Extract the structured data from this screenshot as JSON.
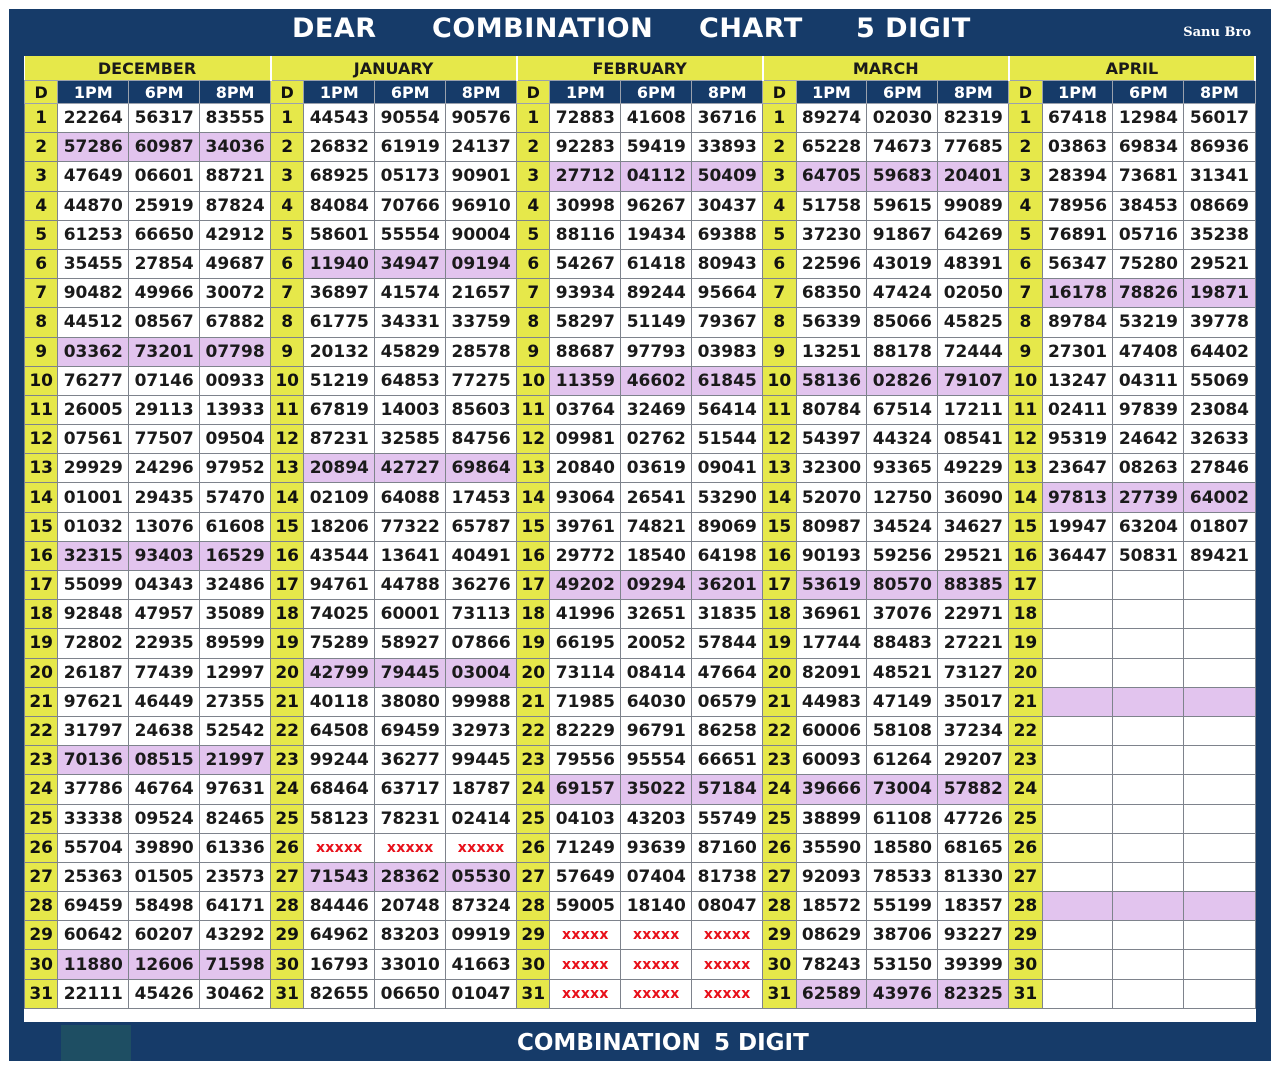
{
  "header": {
    "title_words": [
      "DEAR",
      "COMBINATION",
      "CHART",
      "5 DIGIT"
    ],
    "credit": "Sanu Bro"
  },
  "footer": {
    "words": [
      "COMBINATION",
      "5 DIGIT"
    ]
  },
  "colors": {
    "frame": "#163b69",
    "day_column": "#e6e84a",
    "highlight": "#e2c4ee",
    "missing_value": "#e8101a"
  },
  "column_headers": {
    "day": "D",
    "slots": [
      "1PM",
      "6PM",
      "8PM"
    ]
  },
  "months": [
    {
      "name": "DECEMBER",
      "rows": [
        [
          "22264",
          "56317",
          "83555"
        ],
        [
          "57286",
          "60987",
          "34036"
        ],
        [
          "47649",
          "06601",
          "88721"
        ],
        [
          "44870",
          "25919",
          "87824"
        ],
        [
          "61253",
          "66650",
          "42912"
        ],
        [
          "35455",
          "27854",
          "49687"
        ],
        [
          "90482",
          "49966",
          "30072"
        ],
        [
          "44512",
          "08567",
          "67882"
        ],
        [
          "03362",
          "73201",
          "07798"
        ],
        [
          "76277",
          "07146",
          "00933"
        ],
        [
          "26005",
          "29113",
          "13933"
        ],
        [
          "07561",
          "77507",
          "09504"
        ],
        [
          "29929",
          "24296",
          "97952"
        ],
        [
          "01001",
          "29435",
          "57470"
        ],
        [
          "01032",
          "13076",
          "61608"
        ],
        [
          "32315",
          "93403",
          "16529"
        ],
        [
          "55099",
          "04343",
          "32486"
        ],
        [
          "92848",
          "47957",
          "35089"
        ],
        [
          "72802",
          "22935",
          "89599"
        ],
        [
          "26187",
          "77439",
          "12997"
        ],
        [
          "97621",
          "46449",
          "27355"
        ],
        [
          "31797",
          "24638",
          "52542"
        ],
        [
          "70136",
          "08515",
          "21997"
        ],
        [
          "37786",
          "46764",
          "97631"
        ],
        [
          "33338",
          "09524",
          "82465"
        ],
        [
          "55704",
          "39890",
          "61336"
        ],
        [
          "25363",
          "01505",
          "23573"
        ],
        [
          "69459",
          "58498",
          "64171"
        ],
        [
          "60642",
          "60207",
          "43292"
        ],
        [
          "11880",
          "12606",
          "71598"
        ],
        [
          "22111",
          "45426",
          "30462"
        ]
      ],
      "highlight_days": [
        2,
        9,
        16,
        23,
        30
      ]
    },
    {
      "name": "JANUARY",
      "rows": [
        [
          "44543",
          "90554",
          "90576"
        ],
        [
          "26832",
          "61919",
          "24137"
        ],
        [
          "68925",
          "05173",
          "90901"
        ],
        [
          "84084",
          "70766",
          "96910"
        ],
        [
          "58601",
          "55554",
          "90004"
        ],
        [
          "11940",
          "34947",
          "09194"
        ],
        [
          "36897",
          "41574",
          "21657"
        ],
        [
          "61775",
          "34331",
          "33759"
        ],
        [
          "20132",
          "45829",
          "28578"
        ],
        [
          "51219",
          "64853",
          "77275"
        ],
        [
          "67819",
          "14003",
          "85603"
        ],
        [
          "87231",
          "32585",
          "84756"
        ],
        [
          "20894",
          "42727",
          "69864"
        ],
        [
          "02109",
          "64088",
          "17453"
        ],
        [
          "18206",
          "77322",
          "65787"
        ],
        [
          "43544",
          "13641",
          "40491"
        ],
        [
          "94761",
          "44788",
          "36276"
        ],
        [
          "74025",
          "60001",
          "73113"
        ],
        [
          "75289",
          "58927",
          "07866"
        ],
        [
          "42799",
          "79445",
          "03004"
        ],
        [
          "40118",
          "38080",
          "99988"
        ],
        [
          "64508",
          "69459",
          "32973"
        ],
        [
          "99244",
          "36277",
          "99445"
        ],
        [
          "68464",
          "63717",
          "18787"
        ],
        [
          "58123",
          "78231",
          "02414"
        ],
        [
          "xxxxx",
          "xxxxx",
          "xxxxx"
        ],
        [
          "71543",
          "28362",
          "05530"
        ],
        [
          "84446",
          "20748",
          "87324"
        ],
        [
          "64962",
          "83203",
          "09919"
        ],
        [
          "16793",
          "33010",
          "41663"
        ],
        [
          "82655",
          "06650",
          "01047"
        ]
      ],
      "highlight_days": [
        6,
        13,
        20,
        27
      ]
    },
    {
      "name": "FEBRUARY",
      "rows": [
        [
          "72883",
          "41608",
          "36716"
        ],
        [
          "92283",
          "59419",
          "33893"
        ],
        [
          "27712",
          "04112",
          "50409"
        ],
        [
          "30998",
          "96267",
          "30437"
        ],
        [
          "88116",
          "19434",
          "69388"
        ],
        [
          "54267",
          "61418",
          "80943"
        ],
        [
          "93934",
          "89244",
          "95664"
        ],
        [
          "58297",
          "51149",
          "79367"
        ],
        [
          "88687",
          "97793",
          "03983"
        ],
        [
          "11359",
          "46602",
          "61845"
        ],
        [
          "03764",
          "32469",
          "56414"
        ],
        [
          "09981",
          "02762",
          "51544"
        ],
        [
          "20840",
          "03619",
          "09041"
        ],
        [
          "93064",
          "26541",
          "53290"
        ],
        [
          "39761",
          "74821",
          "89069"
        ],
        [
          "29772",
          "18540",
          "64198"
        ],
        [
          "49202",
          "09294",
          "36201"
        ],
        [
          "41996",
          "32651",
          "31835"
        ],
        [
          "66195",
          "20052",
          "57844"
        ],
        [
          "73114",
          "08414",
          "47664"
        ],
        [
          "71985",
          "64030",
          "06579"
        ],
        [
          "82229",
          "96791",
          "86258"
        ],
        [
          "79556",
          "95554",
          "66651"
        ],
        [
          "69157",
          "35022",
          "57184"
        ],
        [
          "04103",
          "43203",
          "55749"
        ],
        [
          "71249",
          "93639",
          "87160"
        ],
        [
          "57649",
          "07404",
          "81738"
        ],
        [
          "59005",
          "18140",
          "08047"
        ],
        [
          "xxxxx",
          "xxxxx",
          "xxxxx"
        ],
        [
          "xxxxx",
          "xxxxx",
          "xxxxx"
        ],
        [
          "xxxxx",
          "xxxxx",
          "xxxxx"
        ]
      ],
      "highlight_days": [
        3,
        10,
        17,
        24
      ]
    },
    {
      "name": "MARCH",
      "rows": [
        [
          "89274",
          "02030",
          "82319"
        ],
        [
          "65228",
          "74673",
          "77685"
        ],
        [
          "64705",
          "59683",
          "20401"
        ],
        [
          "51758",
          "59615",
          "99089"
        ],
        [
          "37230",
          "91867",
          "64269"
        ],
        [
          "22596",
          "43019",
          "48391"
        ],
        [
          "68350",
          "47424",
          "02050"
        ],
        [
          "56339",
          "85066",
          "45825"
        ],
        [
          "13251",
          "88178",
          "72444"
        ],
        [
          "58136",
          "02826",
          "79107"
        ],
        [
          "80784",
          "67514",
          "17211"
        ],
        [
          "54397",
          "44324",
          "08541"
        ],
        [
          "32300",
          "93365",
          "49229"
        ],
        [
          "52070",
          "12750",
          "36090"
        ],
        [
          "80987",
          "34524",
          "34627"
        ],
        [
          "90193",
          "59256",
          "29521"
        ],
        [
          "53619",
          "80570",
          "88385"
        ],
        [
          "36961",
          "37076",
          "22971"
        ],
        [
          "17744",
          "88483",
          "27221"
        ],
        [
          "82091",
          "48521",
          "73127"
        ],
        [
          "44983",
          "47149",
          "35017"
        ],
        [
          "60006",
          "58108",
          "37234"
        ],
        [
          "60093",
          "61264",
          "29207"
        ],
        [
          "39666",
          "73004",
          "57882"
        ],
        [
          "38899",
          "61108",
          "47726"
        ],
        [
          "35590",
          "18580",
          "68165"
        ],
        [
          "92093",
          "78533",
          "81330"
        ],
        [
          "18572",
          "55199",
          "18357"
        ],
        [
          "08629",
          "38706",
          "93227"
        ],
        [
          "78243",
          "53150",
          "39399"
        ],
        [
          "62589",
          "43976",
          "82325"
        ]
      ],
      "highlight_days": [
        3,
        10,
        17,
        24,
        31
      ]
    },
    {
      "name": "APRIL",
      "rows": [
        [
          "67418",
          "12984",
          "56017"
        ],
        [
          "03863",
          "69834",
          "86936"
        ],
        [
          "28394",
          "73681",
          "31341"
        ],
        [
          "78956",
          "38453",
          "08669"
        ],
        [
          "76891",
          "05716",
          "35238"
        ],
        [
          "56347",
          "75280",
          "29521"
        ],
        [
          "16178",
          "78826",
          "19871"
        ],
        [
          "89784",
          "53219",
          "39778"
        ],
        [
          "27301",
          "47408",
          "64402"
        ],
        [
          "13247",
          "04311",
          "55069"
        ],
        [
          "02411",
          "97839",
          "23084"
        ],
        [
          "95319",
          "24642",
          "32633"
        ],
        [
          "23647",
          "08263",
          "27846"
        ],
        [
          "97813",
          "27739",
          "64002"
        ],
        [
          "19947",
          "63204",
          "01807"
        ],
        [
          "36447",
          "50831",
          "89421"
        ],
        [
          "",
          "",
          ""
        ],
        [
          "",
          "",
          ""
        ],
        [
          "",
          "",
          ""
        ],
        [
          "",
          "",
          ""
        ],
        [
          "",
          "",
          ""
        ],
        [
          "",
          "",
          ""
        ],
        [
          "",
          "",
          ""
        ],
        [
          "",
          "",
          ""
        ],
        [
          "",
          "",
          ""
        ],
        [
          "",
          "",
          ""
        ],
        [
          "",
          "",
          ""
        ],
        [
          "",
          "",
          ""
        ],
        [
          "",
          "",
          ""
        ],
        [
          "",
          "",
          ""
        ],
        [
          "",
          "",
          ""
        ]
      ],
      "highlight_days": [
        7,
        14,
        21,
        28
      ]
    }
  ]
}
